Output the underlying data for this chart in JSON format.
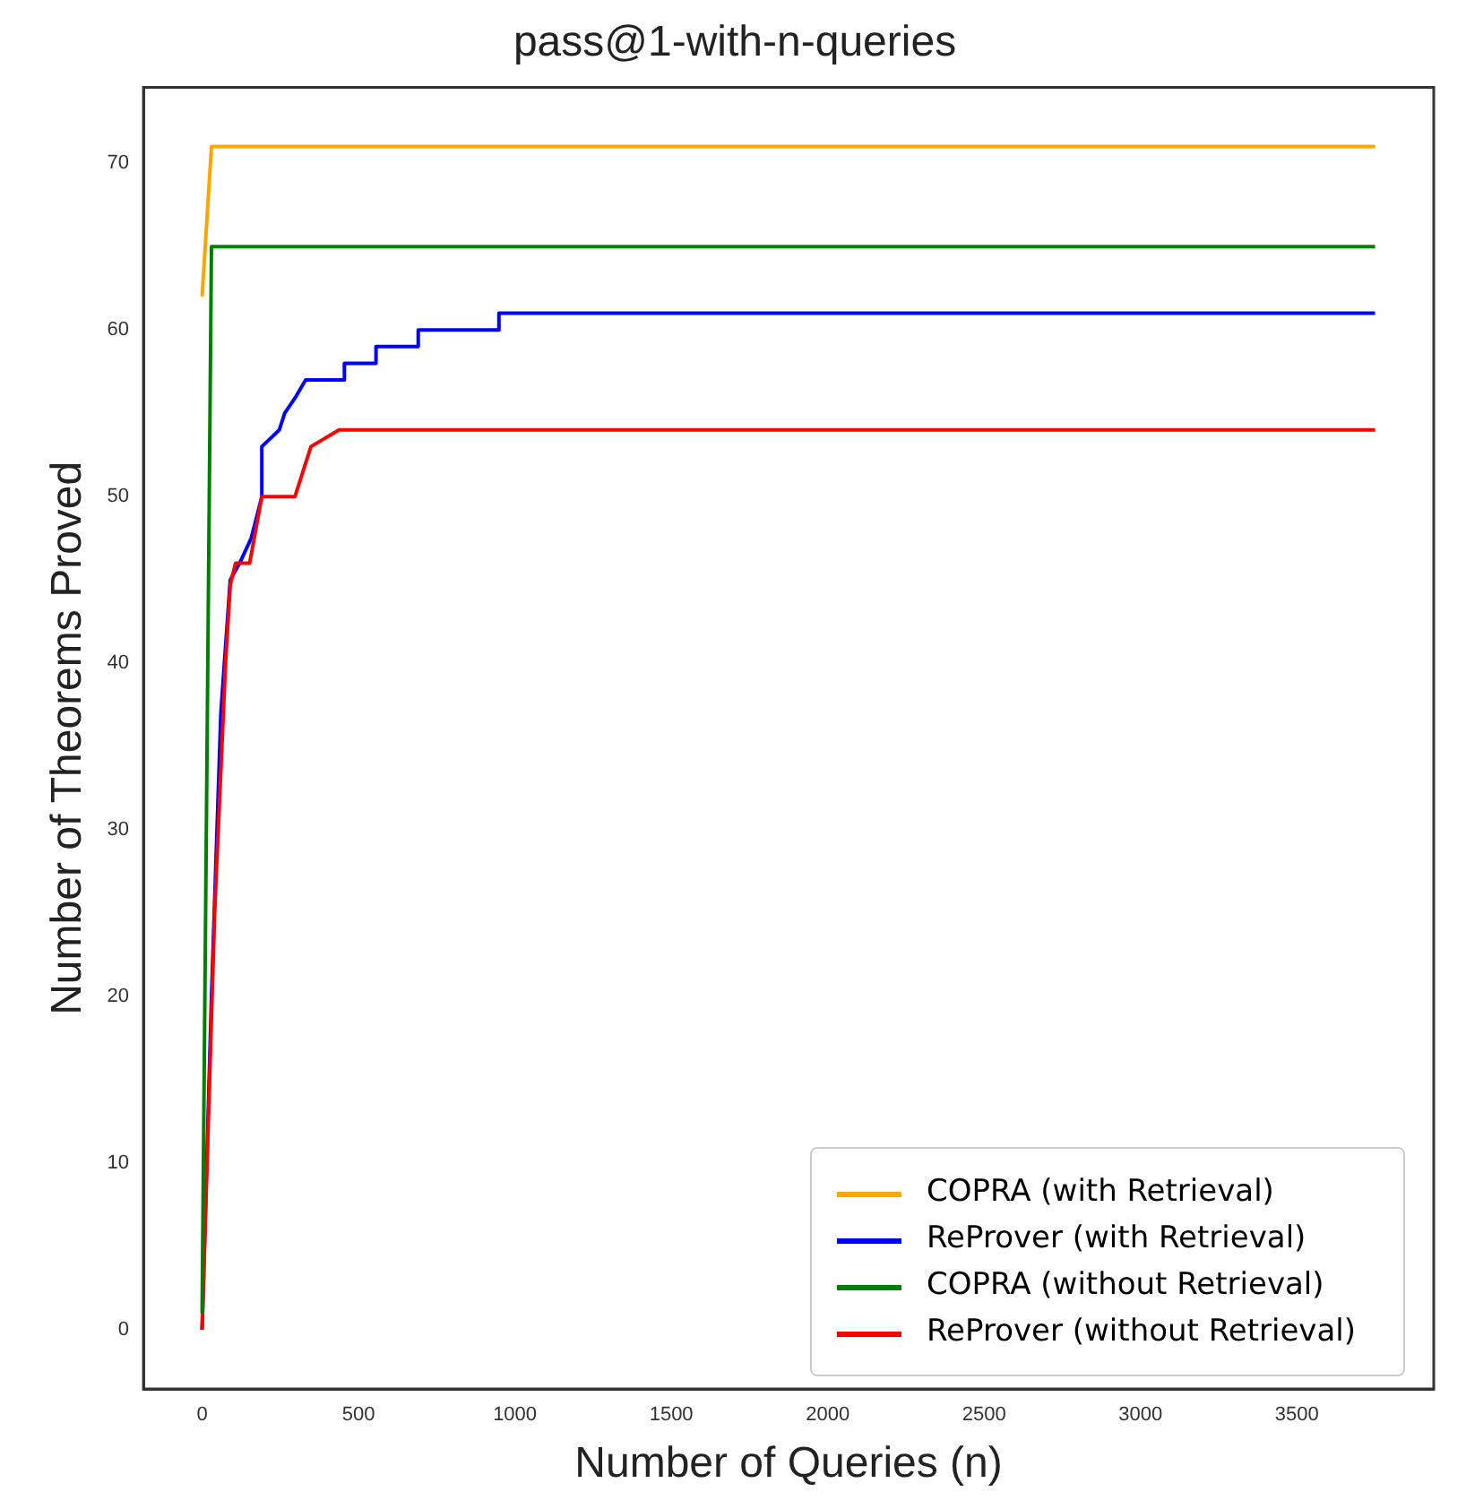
{
  "chart_data": {
    "type": "line",
    "title": "pass@1-with-n-queries",
    "xlabel": "Number of Queries (n)",
    "ylabel": "Number of Theorems Proved",
    "xlim": [
      -187.5,
      3937.5
    ],
    "xticks": [
      0,
      500,
      1000,
      1500,
      2000,
      2500,
      3000,
      3500
    ],
    "ylim": [
      -3.55,
      74.55
    ],
    "yticks": [
      0,
      10,
      20,
      30,
      40,
      50,
      60,
      70
    ],
    "grid": false,
    "legend": "bottom right",
    "marker": "none",
    "line_style": "solid",
    "series": [
      {
        "name": "COPRA (with Retrieval)",
        "color": "#ffa500",
        "x": [
          0,
          30,
          3750
        ],
        "values": [
          62,
          71,
          71
        ]
      },
      {
        "name": "ReProver (with Retrieval)",
        "color": "#0000ff",
        "x": [
          0,
          30,
          60,
          90,
          120,
          157,
          191,
          191,
          247,
          264,
          300,
          331,
          455,
          455,
          556,
          556,
          691,
          691,
          949,
          949,
          3750
        ],
        "values": [
          0,
          20,
          37,
          45,
          46,
          47.5,
          50,
          53,
          54,
          55,
          56,
          57,
          57,
          58,
          58,
          59,
          59,
          60,
          60,
          61,
          61
        ]
      },
      {
        "name": "COPRA (without Retrieval)",
        "color": "#008000",
        "x": [
          0,
          30,
          3750
        ],
        "values": [
          1,
          65,
          65
        ]
      },
      {
        "name": "ReProver (without Retrieval)",
        "color": "#ff0000",
        "x": [
          0,
          40,
          75,
          90,
          107,
          152,
          191,
          297,
          331,
          348,
          438,
          3750
        ],
        "values": [
          0,
          25,
          40,
          44.7,
          46,
          46,
          50,
          50,
          52,
          53,
          54,
          54
        ]
      }
    ]
  }
}
